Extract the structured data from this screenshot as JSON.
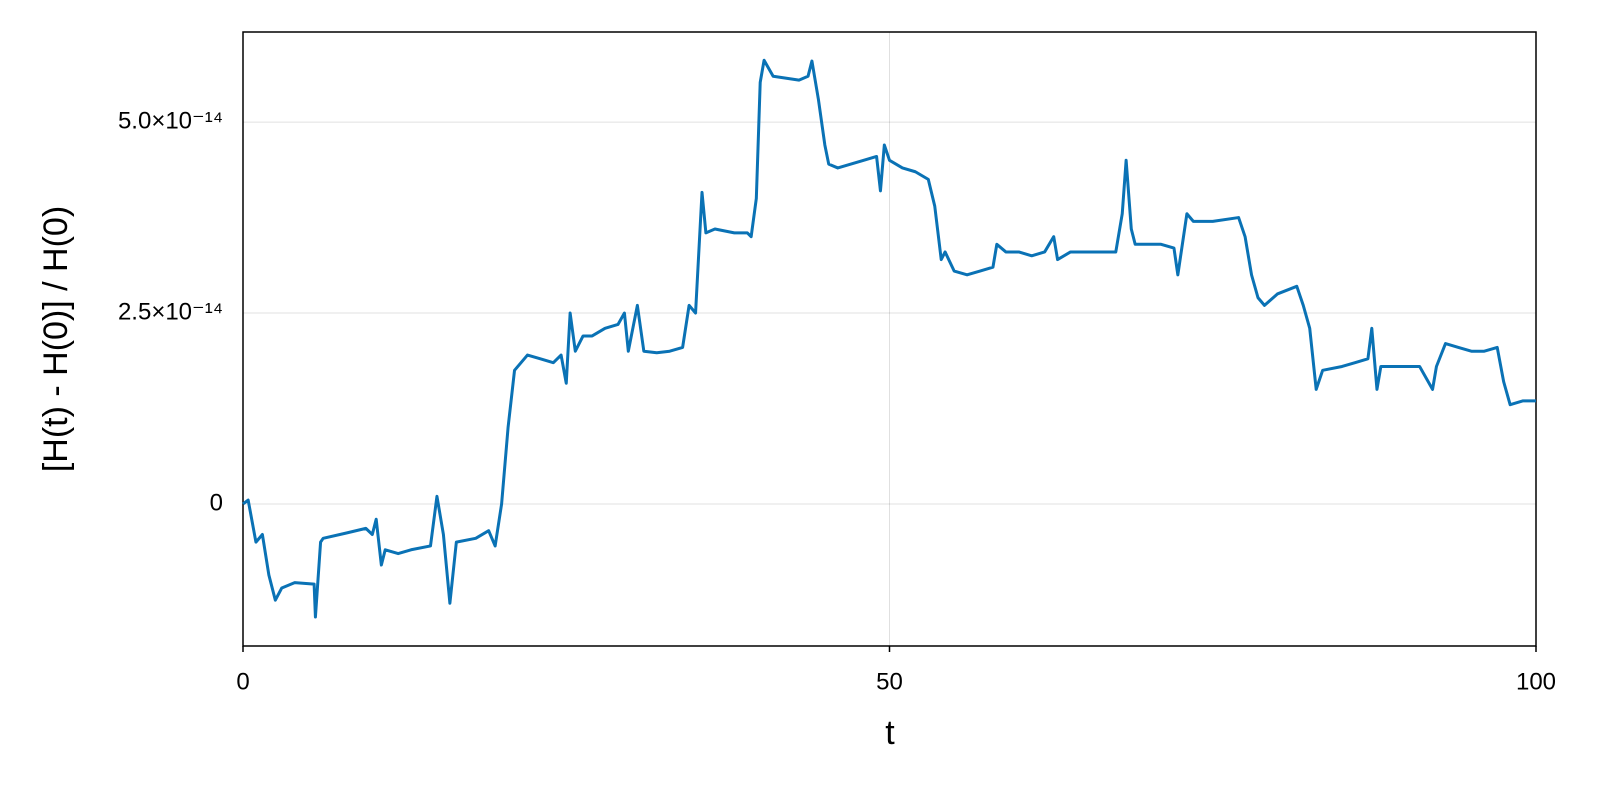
{
  "chart_data": {
    "type": "line",
    "xlabel": "t",
    "ylabel": "[H(t) - H(0)] / H(0)",
    "x": [
      0,
      0.4,
      1,
      1.5,
      2,
      2.5,
      3,
      4,
      5.5,
      5.6,
      6,
      6.2,
      8,
      9.5,
      10,
      10.3,
      10.7,
      11,
      12,
      13,
      14.5,
      15,
      15.5,
      16,
      16.5,
      18,
      19,
      19.5,
      20,
      20.5,
      21,
      22,
      23,
      24,
      24.6,
      25,
      25.3,
      25.7,
      26.3,
      27,
      28,
      29,
      29.5,
      29.8,
      30.5,
      31,
      32,
      33,
      34,
      34.5,
      35,
      35.5,
      35.8,
      36.5,
      38,
      39,
      39.3,
      39.7,
      40,
      40.3,
      41,
      43,
      43.7,
      44,
      44.5,
      45,
      45.3,
      46,
      48,
      49,
      49.3,
      49.6,
      50,
      51,
      52,
      53,
      53.5,
      54,
      54.3,
      55,
      56,
      57,
      58,
      58.3,
      59,
      60,
      61,
      62,
      62.7,
      63,
      64,
      65,
      66,
      67.5,
      68,
      68.3,
      68.7,
      69,
      71,
      72,
      72.3,
      73,
      73.5,
      75,
      77,
      77.5,
      78,
      78.5,
      79,
      80,
      81.5,
      82,
      82.5,
      83,
      83.5,
      85,
      86,
      87,
      87.3,
      87.7,
      88,
      90,
      91,
      92,
      92.3,
      93,
      94,
      95,
      96,
      97,
      97.5,
      98,
      99,
      100
    ],
    "values": [
      0,
      5e-16,
      -5e-15,
      -4e-15,
      -9.3e-15,
      -1.26e-14,
      -1.1e-14,
      -1.03e-14,
      -1.05e-14,
      -1.48e-14,
      -5e-15,
      -4.5e-15,
      -3.8e-15,
      -3.2e-15,
      -4e-15,
      -2e-15,
      -8e-15,
      -6e-15,
      -6.5e-15,
      -6e-15,
      -5.5e-15,
      1e-15,
      -4e-15,
      -1.3e-14,
      -5e-15,
      -4.5e-15,
      -3.5e-15,
      -5.5e-15,
      0,
      1e-14,
      1.75e-14,
      1.95e-14,
      1.9e-14,
      1.85e-14,
      1.95e-14,
      1.58e-14,
      2.5e-14,
      2e-14,
      2.2e-14,
      2.2e-14,
      2.3e-14,
      2.35e-14,
      2.5e-14,
      2e-14,
      2.6e-14,
      2e-14,
      1.98e-14,
      2e-14,
      2.05e-14,
      2.6e-14,
      2.5e-14,
      4.08e-14,
      3.55e-14,
      3.6e-14,
      3.55e-14,
      3.55e-14,
      3.5e-14,
      4e-14,
      5.52e-14,
      5.81e-14,
      5.6e-14,
      5.55e-14,
      5.6e-14,
      5.8e-14,
      5.3e-14,
      4.7e-14,
      4.45e-14,
      4.4e-14,
      4.5e-14,
      4.55e-14,
      4.1e-14,
      4.7e-14,
      4.5e-14,
      4.4e-14,
      4.35e-14,
      4.25e-14,
      3.9e-14,
      3.2e-14,
      3.3e-14,
      3.05e-14,
      3e-14,
      3.05e-14,
      3.1e-14,
      3.4e-14,
      3.3e-14,
      3.3e-14,
      3.25e-14,
      3.3e-14,
      3.5e-14,
      3.2e-14,
      3.3e-14,
      3.3e-14,
      3.3e-14,
      3.3e-14,
      3.8e-14,
      4.5e-14,
      3.6e-14,
      3.4e-14,
      3.4e-14,
      3.35e-14,
      3e-14,
      3.8e-14,
      3.7e-14,
      3.7e-14,
      3.75e-14,
      3.5e-14,
      3e-14,
      2.7e-14,
      2.6e-14,
      2.75e-14,
      2.85e-14,
      2.6e-14,
      2.3e-14,
      1.5e-14,
      1.75e-14,
      1.8e-14,
      1.85e-14,
      1.9e-14,
      2.3e-14,
      1.5e-14,
      1.8e-14,
      1.8e-14,
      1.8e-14,
      1.5e-14,
      1.8e-14,
      2.1e-14,
      2.05e-14,
      2e-14,
      2e-14,
      2.05e-14,
      1.6e-14,
      1.3e-14,
      1.35e-14,
      1.35e-14
    ],
    "color": "#0a72b5",
    "xlim": [
      0,
      100
    ],
    "xticks": [
      0,
      50,
      100
    ],
    "ylim": [
      -1.86e-14,
      6.18e-14
    ],
    "yticks": [
      0,
      {
        "value": 2.5e-14,
        "label": "2.5×10⁻¹⁴"
      },
      {
        "value": 5e-14,
        "label": "5.0×10⁻¹⁴"
      }
    ],
    "grid": true
  }
}
